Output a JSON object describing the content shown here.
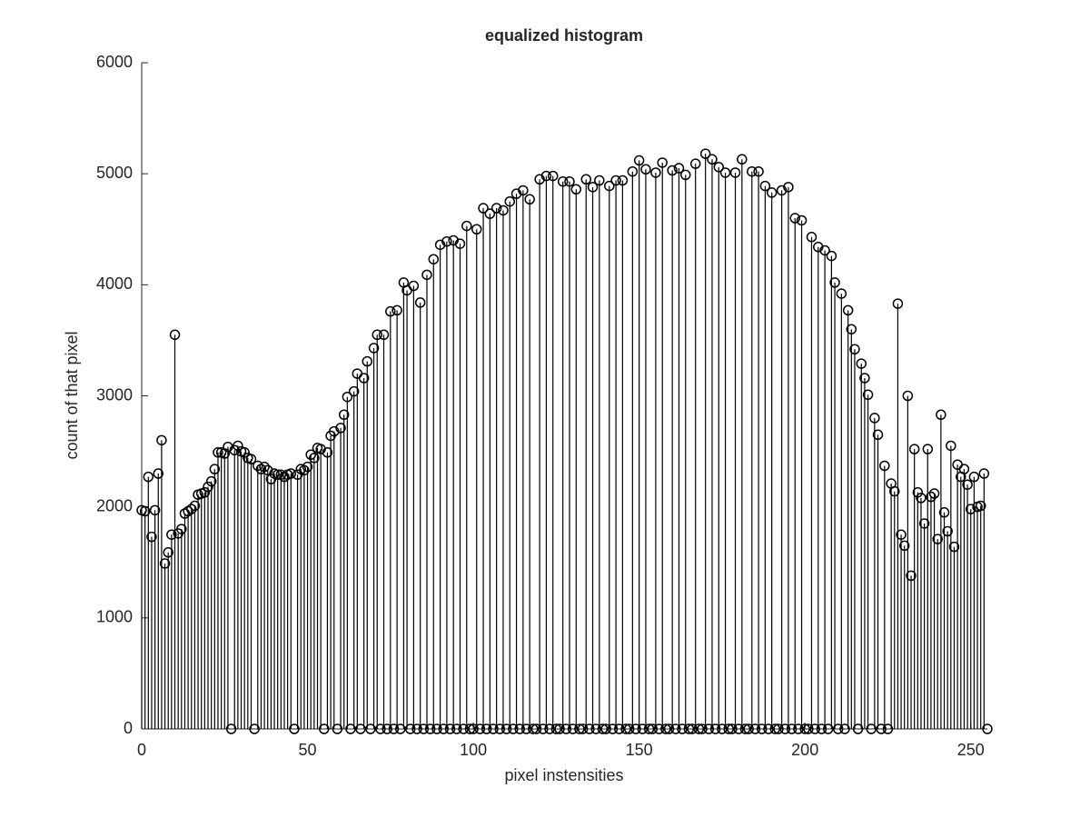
{
  "chart_data": {
    "type": "stem",
    "title": "equalized histogram",
    "x_label": "pixel instensities",
    "y_label": "count of that pixel",
    "x": [
      0,
      1,
      2,
      3,
      4,
      5,
      6,
      7,
      8,
      9,
      10,
      11,
      12,
      13,
      14,
      15,
      16,
      17,
      18,
      19,
      20,
      21,
      22,
      23,
      24,
      25,
      26,
      27,
      28,
      29,
      30,
      31,
      32,
      33,
      34,
      35,
      36,
      37,
      38,
      39,
      40,
      41,
      42,
      43,
      44,
      45,
      46,
      47,
      48,
      49,
      50,
      51,
      52,
      53,
      54,
      55,
      56,
      57,
      58,
      59,
      60,
      61,
      62,
      63,
      64,
      65,
      66,
      67,
      68,
      69,
      70,
      71,
      72,
      73,
      74,
      75,
      76,
      77,
      78,
      79,
      80,
      81,
      82,
      83,
      84,
      85,
      86,
      87,
      88,
      89,
      90,
      91,
      92,
      93,
      94,
      95,
      96,
      97,
      98,
      99,
      100,
      101,
      102,
      103,
      104,
      105,
      106,
      107,
      108,
      109,
      110,
      111,
      112,
      113,
      114,
      115,
      116,
      117,
      118,
      119,
      120,
      121,
      122,
      123,
      124,
      125,
      126,
      127,
      128,
      129,
      130,
      131,
      132,
      133,
      134,
      135,
      136,
      137,
      138,
      139,
      140,
      141,
      142,
      143,
      144,
      145,
      146,
      147,
      148,
      149,
      150,
      151,
      152,
      153,
      154,
      155,
      156,
      157,
      158,
      159,
      160,
      161,
      162,
      163,
      164,
      165,
      166,
      167,
      168,
      169,
      170,
      171,
      172,
      173,
      174,
      175,
      176,
      177,
      178,
      179,
      180,
      181,
      182,
      183,
      184,
      185,
      186,
      187,
      188,
      189,
      190,
      191,
      192,
      193,
      194,
      195,
      196,
      197,
      198,
      199,
      200,
      201,
      202,
      203,
      204,
      205,
      206,
      207,
      208,
      209,
      210,
      211,
      212,
      213,
      214,
      215,
      216,
      217,
      218,
      219,
      220,
      221,
      222,
      223,
      224,
      225,
      226,
      227,
      228,
      229,
      230,
      231,
      232,
      233,
      234,
      235,
      236,
      237,
      238,
      239,
      240,
      241,
      242,
      243,
      244,
      245,
      246,
      247,
      248,
      249,
      250,
      251,
      252,
      253,
      254,
      255
    ],
    "values": [
      1970,
      1960,
      2270,
      1730,
      1970,
      2300,
      2600,
      1490,
      1590,
      1750,
      3550,
      1760,
      1800,
      1940,
      1960,
      1980,
      2010,
      2110,
      2120,
      2130,
      2180,
      2230,
      2340,
      2490,
      2490,
      2480,
      2540,
      0,
      2510,
      2550,
      2500,
      2490,
      2440,
      2430,
      0,
      2370,
      2340,
      2360,
      2330,
      2250,
      2300,
      2290,
      2290,
      2270,
      2290,
      2300,
      0,
      2290,
      2340,
      2330,
      2360,
      2470,
      2440,
      2530,
      2520,
      0,
      2490,
      2640,
      2680,
      0,
      2710,
      2830,
      2990,
      0,
      3040,
      3200,
      0,
      3160,
      3310,
      0,
      3430,
      3550,
      0,
      3550,
      0,
      3760,
      0,
      3770,
      0,
      4020,
      3950,
      0,
      3990,
      0,
      3840,
      0,
      4090,
      0,
      4230,
      0,
      4360,
      0,
      4390,
      0,
      4400,
      0,
      4370,
      0,
      4530,
      0,
      0,
      4500,
      0,
      4690,
      0,
      4640,
      0,
      4690,
      0,
      4670,
      0,
      4750,
      0,
      4820,
      0,
      4850,
      0,
      4770,
      0,
      0,
      4950,
      0,
      4980,
      0,
      4980,
      0,
      0,
      4930,
      0,
      4930,
      0,
      4860,
      0,
      0,
      4950,
      0,
      4880,
      0,
      4940,
      0,
      0,
      4890,
      0,
      4940,
      0,
      4940,
      0,
      0,
      5020,
      0,
      5120,
      0,
      5040,
      0,
      0,
      5010,
      0,
      5100,
      0,
      0,
      5030,
      0,
      5050,
      0,
      4990,
      0,
      0,
      5090,
      0,
      0,
      5180,
      0,
      5130,
      0,
      5060,
      0,
      5010,
      0,
      0,
      5010,
      0,
      5130,
      0,
      0,
      5020,
      0,
      5020,
      0,
      4890,
      0,
      4830,
      0,
      0,
      4850,
      0,
      4880,
      0,
      4600,
      0,
      4580,
      0,
      0,
      4430,
      0,
      4340,
      0,
      4310,
      0,
      4260,
      4020,
      0,
      3920,
      0,
      3770,
      3600,
      3420,
      0,
      3290,
      3160,
      3010,
      0,
      2800,
      2650,
      0,
      2370,
      0,
      2210,
      2140,
      3830,
      1750,
      1650,
      3000,
      1380,
      2520,
      2130,
      2080,
      1850,
      2520,
      2090,
      2120,
      1710,
      2830,
      1950,
      1780,
      2550,
      1640,
      2380,
      2270,
      2340,
      2200,
      1980,
      2270,
      2000,
      2010,
      2300,
      0
    ],
    "color": "#000000",
    "xlim": [
      0,
      255
    ],
    "xticks": [
      0,
      50,
      100,
      150,
      200,
      250
    ],
    "ylim": [
      0,
      6000
    ],
    "yticks": [
      0,
      1000,
      2000,
      3000,
      4000,
      5000,
      6000
    ]
  }
}
